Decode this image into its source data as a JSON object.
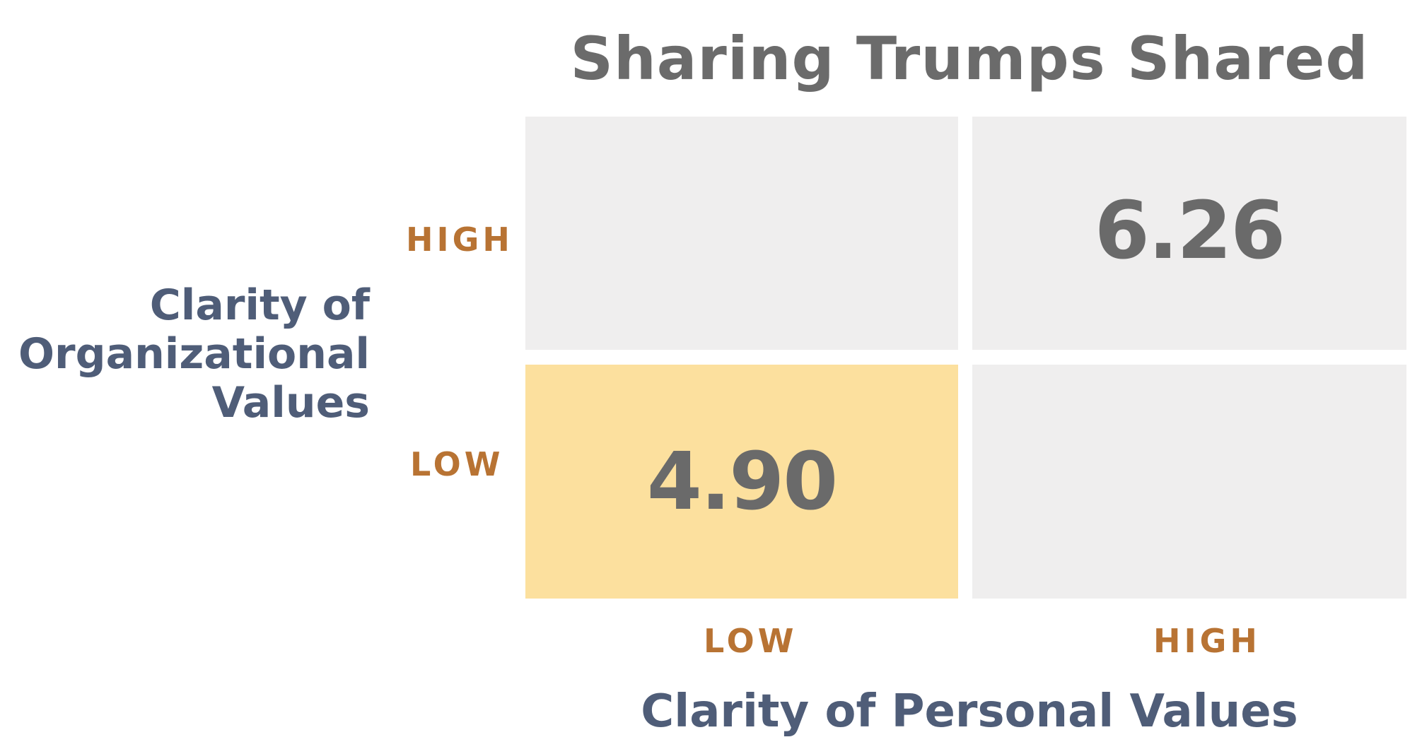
{
  "chart_data": {
    "type": "table",
    "title": "Sharing Trumps Shared",
    "xlabel": "Clarity of Personal Values",
    "ylabel_lines": [
      "Clarity of",
      "Organizational",
      "Values"
    ],
    "x_categories": [
      "LOW",
      "HIGH"
    ],
    "y_categories": [
      "HIGH",
      "LOW"
    ],
    "cells": [
      {
        "row": "HIGH",
        "col": "LOW",
        "value": ""
      },
      {
        "row": "HIGH",
        "col": "HIGH",
        "value": "6.26"
      },
      {
        "row": "LOW",
        "col": "LOW",
        "value": "4.90"
      },
      {
        "row": "LOW",
        "col": "HIGH",
        "value": ""
      }
    ],
    "highlight_cell": {
      "row": "LOW",
      "col": "LOW"
    },
    "colors": {
      "title": "#6b6b6b",
      "cell": "#efeeee",
      "highlight": "#fce09e",
      "value": "#6a6a6a",
      "tick": "#b87333",
      "axis_label": "#4f5d78"
    }
  }
}
